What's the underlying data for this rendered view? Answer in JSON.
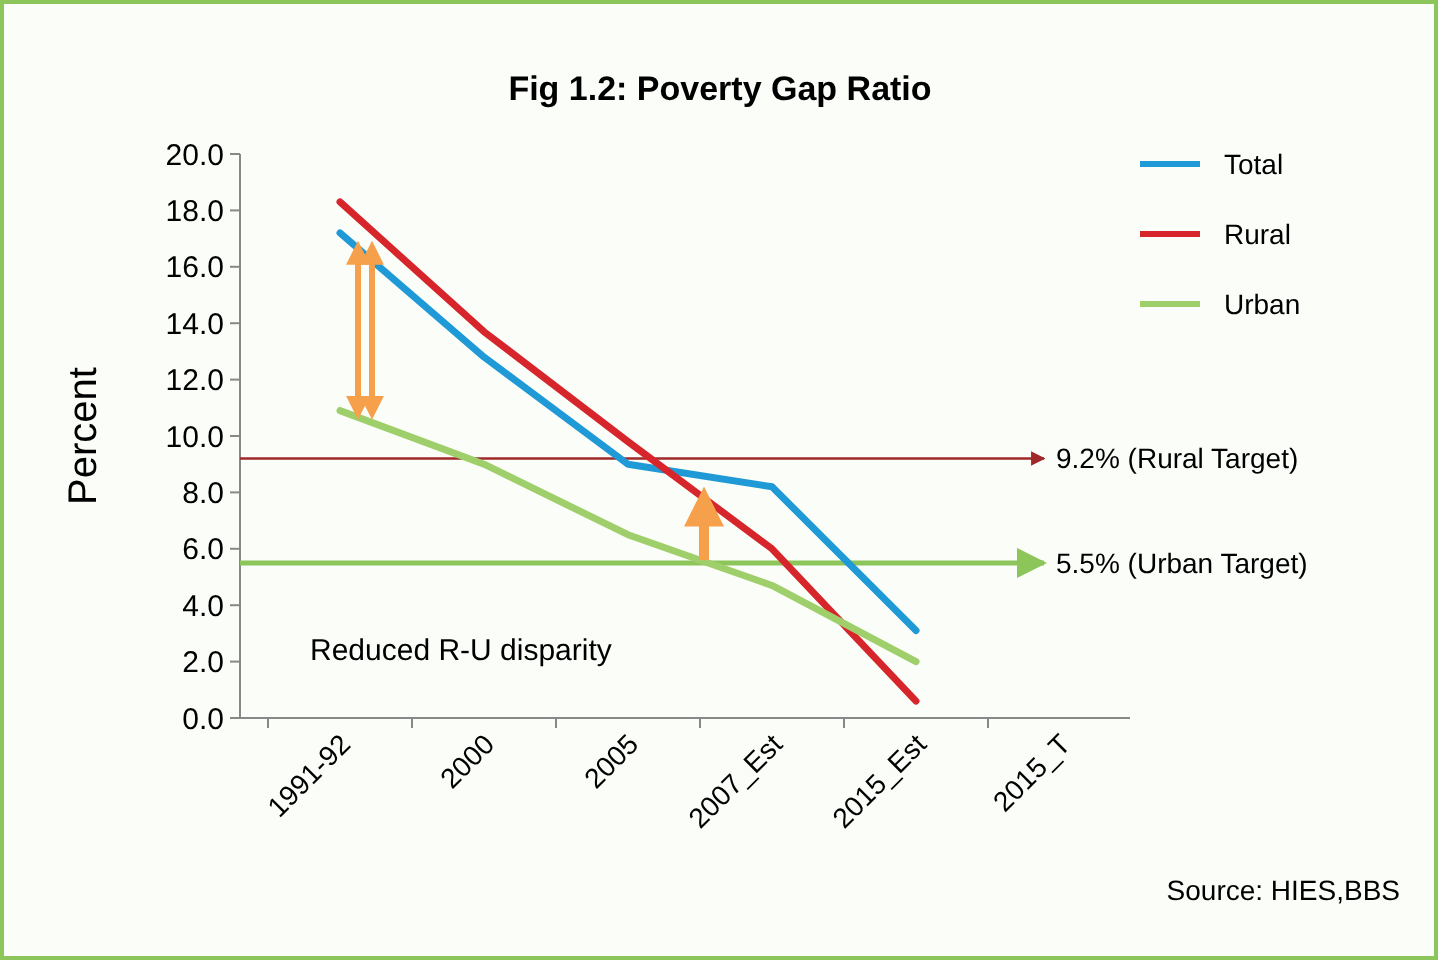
{
  "chart_data": {
    "type": "line",
    "title": "Fig 1.2: Poverty Gap Ratio",
    "ylabel": "Percent",
    "categories": [
      "1991-92",
      "2000",
      "2005",
      "2007_Est",
      "2015_Est",
      "2015_T"
    ],
    "series": [
      {
        "name": "Total",
        "color": "#1f9ad6",
        "values": [
          17.2,
          12.8,
          9.0,
          8.2,
          3.1,
          null
        ]
      },
      {
        "name": "Rural",
        "color": "#d7262b",
        "values": [
          18.3,
          13.7,
          9.8,
          6.0,
          0.6,
          null
        ]
      },
      {
        "name": "Urban",
        "color": "#9fcf6a",
        "values": [
          10.9,
          9.0,
          6.5,
          4.7,
          2.0,
          null
        ]
      }
    ],
    "ylim": [
      0,
      20
    ],
    "yticks": [
      {
        "value": 0,
        "label": "0.0"
      },
      {
        "value": 2,
        "label": "2.0"
      },
      {
        "value": 4,
        "label": "4.0"
      },
      {
        "value": 6,
        "label": "6.0"
      },
      {
        "value": 8,
        "label": "8.0"
      },
      {
        "value": 10,
        "label": "10.0"
      },
      {
        "value": 12,
        "label": "12.0"
      },
      {
        "value": 14,
        "label": "14.0"
      },
      {
        "value": 16,
        "label": "16.0"
      },
      {
        "value": 18,
        "label": "18.0"
      },
      {
        "value": 20,
        "label": "20.0"
      }
    ],
    "ref_lines": [
      {
        "axis": "y",
        "value": 9.2,
        "label": "9.2% (Rural Target)",
        "color": "#a0282a"
      },
      {
        "axis": "y",
        "value": 5.5,
        "label": "5.5% (Urban Target)",
        "color": "#8cc65a"
      }
    ],
    "annotations": [
      "Reduced R-U disparity",
      "Source: HIES,BBS"
    ],
    "legend": "top right",
    "marker": "none",
    "line_style": "solid"
  }
}
